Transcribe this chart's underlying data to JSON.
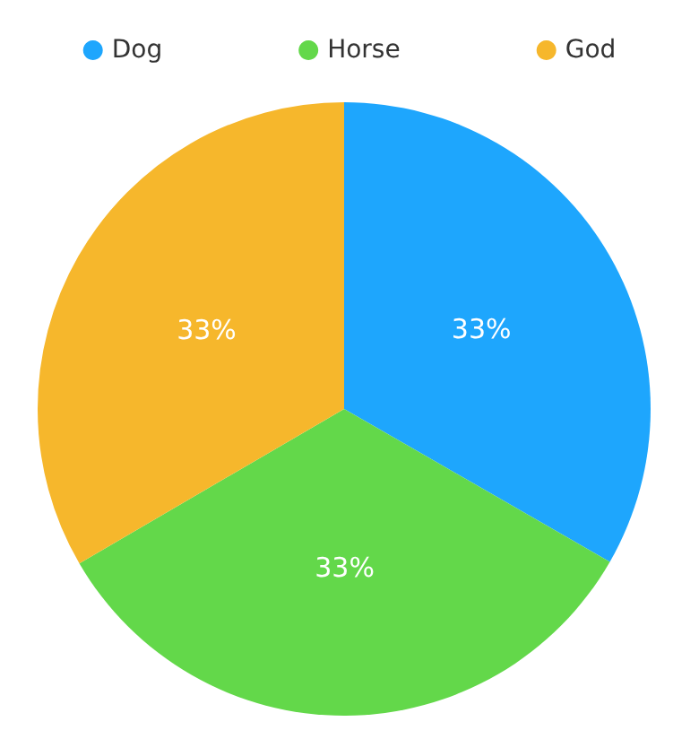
{
  "chart_data": {
    "type": "pie",
    "categories": [
      "Dog",
      "Horse",
      "God"
    ],
    "values": [
      33.3,
      33.3,
      33.4
    ],
    "colors": [
      "#1ea6fd",
      "#63d84a",
      "#f6b72c"
    ],
    "value_labels": [
      "33%",
      "33%",
      "33%"
    ],
    "legend": "top"
  }
}
